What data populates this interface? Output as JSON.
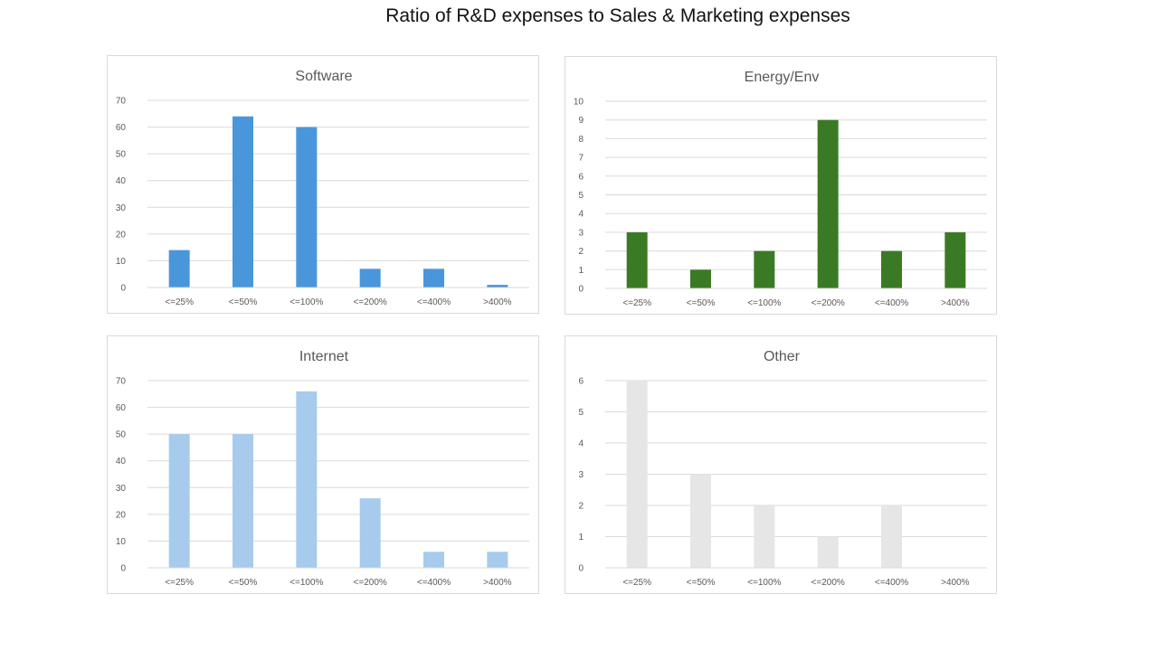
{
  "page": {
    "title": "Ratio of R&D expenses to Sales & Marketing expenses"
  },
  "colors": {
    "software": "#4a96db",
    "energy": "#3a7a25",
    "internet": "#a7cbed",
    "other": "#e6e6e6"
  },
  "chart_data": [
    {
      "type": "bar",
      "title": "Software",
      "categories": [
        "<=25%",
        "<=50%",
        "<=100%",
        "<=200%",
        "<=400%",
        ">400%"
      ],
      "values": [
        14,
        64,
        60,
        7,
        7,
        1
      ],
      "ylim": [
        0,
        70
      ],
      "yticks": [
        0,
        10,
        20,
        30,
        40,
        50,
        60,
        70
      ],
      "color": "#4a96db",
      "grid": true,
      "xlabel": "",
      "ylabel": ""
    },
    {
      "type": "bar",
      "title": "Energy/Env",
      "categories": [
        "<=25%",
        "<=50%",
        "<=100%",
        "<=200%",
        "<=400%",
        ">400%"
      ],
      "values": [
        3,
        1,
        2,
        9,
        2,
        3
      ],
      "ylim": [
        0,
        10
      ],
      "yticks": [
        0,
        1,
        2,
        3,
        4,
        5,
        6,
        7,
        8,
        9,
        10
      ],
      "color": "#3a7a25",
      "grid": true,
      "xlabel": "",
      "ylabel": ""
    },
    {
      "type": "bar",
      "title": "Internet",
      "categories": [
        "<=25%",
        "<=50%",
        "<=100%",
        "<=200%",
        "<=400%",
        ">400%"
      ],
      "values": [
        50,
        50,
        66,
        26,
        6,
        6
      ],
      "ylim": [
        0,
        70
      ],
      "yticks": [
        0,
        10,
        20,
        30,
        40,
        50,
        60,
        70
      ],
      "color": "#a7cbed",
      "grid": true,
      "xlabel": "",
      "ylabel": ""
    },
    {
      "type": "bar",
      "title": "Other",
      "categories": [
        "<=25%",
        "<=50%",
        "<=100%",
        "<=200%",
        "<=400%",
        ">400%"
      ],
      "values": [
        6,
        3,
        2,
        1,
        2,
        0
      ],
      "ylim": [
        0,
        6
      ],
      "yticks": [
        0,
        1,
        2,
        3,
        4,
        5,
        6
      ],
      "color": "#e6e6e6",
      "grid": true,
      "xlabel": "",
      "ylabel": ""
    }
  ]
}
